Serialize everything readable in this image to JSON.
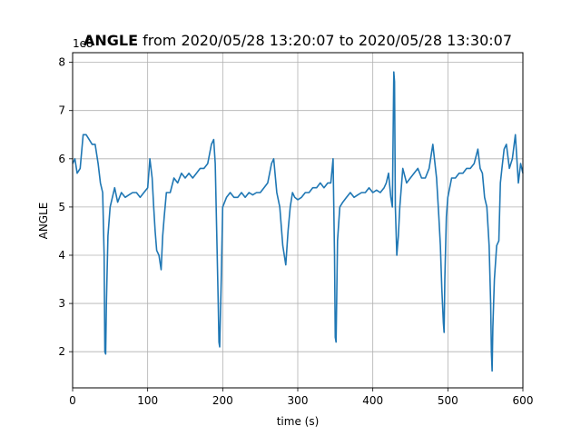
{
  "chart_data": {
    "type": "line",
    "title_bold": "ANGLE",
    "title_rest": " from 2020/05/28 13:20:07 to 2020/05/28 13:30:07",
    "xlabel": "time (s)",
    "ylabel": "ANGLE",
    "y_offset_label": "1e8",
    "xlim": [
      0,
      600
    ],
    "ylim": [
      1.25,
      8.2
    ],
    "xticks": [
      0,
      100,
      200,
      300,
      400,
      500,
      600
    ],
    "yticks": [
      2,
      3,
      4,
      5,
      6,
      7,
      8
    ],
    "grid": true,
    "line_color": "#1f77b4",
    "series": [
      {
        "x": [
          0,
          3,
          6,
          10,
          14,
          18,
          22,
          26,
          30,
          34,
          37,
          40,
          42,
          43,
          44,
          45,
          47,
          50,
          53,
          56,
          60,
          65,
          70,
          75,
          80,
          85,
          90,
          95,
          100,
          103,
          106,
          108,
          110,
          112,
          115,
          118,
          120,
          122,
          125,
          130,
          135,
          140,
          145,
          150,
          155,
          160,
          165,
          170,
          175,
          180,
          185,
          188,
          190,
          192,
          194,
          195,
          196,
          198,
          200,
          205,
          210,
          215,
          220,
          225,
          230,
          235,
          240,
          245,
          250,
          255,
          260,
          265,
          268,
          272,
          276,
          280,
          284,
          287,
          290,
          293,
          296,
          300,
          305,
          310,
          315,
          320,
          325,
          330,
          335,
          340,
          344,
          347,
          349,
          350,
          351,
          353,
          356,
          360,
          365,
          370,
          375,
          380,
          385,
          390,
          395,
          400,
          405,
          410,
          415,
          418,
          421,
          424,
          426,
          427,
          428,
          429,
          430,
          431,
          432,
          434,
          436,
          440,
          445,
          450,
          455,
          460,
          465,
          470,
          475,
          480,
          485,
          488,
          490,
          492,
          494,
          495,
          496,
          498,
          500,
          505,
          510,
          515,
          520,
          525,
          530,
          535,
          540,
          543,
          546,
          549,
          552,
          555,
          557,
          558,
          559,
          560,
          562,
          565,
          568,
          570,
          572,
          575,
          578,
          582,
          586,
          590,
          594,
          597,
          600
        ],
        "y": [
          5.9,
          6.0,
          5.7,
          5.8,
          6.5,
          6.5,
          6.4,
          6.3,
          6.3,
          5.9,
          5.5,
          5.3,
          4.0,
          2.0,
          1.95,
          3.0,
          4.4,
          5.0,
          5.2,
          5.4,
          5.1,
          5.3,
          5.2,
          5.25,
          5.3,
          5.3,
          5.2,
          5.3,
          5.4,
          6.0,
          5.6,
          5.0,
          4.5,
          4.1,
          4.0,
          3.7,
          4.4,
          4.8,
          5.3,
          5.3,
          5.6,
          5.5,
          5.7,
          5.6,
          5.7,
          5.6,
          5.7,
          5.8,
          5.8,
          5.9,
          6.3,
          6.4,
          5.9,
          4.5,
          3.0,
          2.2,
          2.1,
          3.5,
          5.0,
          5.2,
          5.3,
          5.2,
          5.2,
          5.3,
          5.2,
          5.3,
          5.25,
          5.3,
          5.3,
          5.4,
          5.5,
          5.9,
          6.0,
          5.3,
          5.0,
          4.2,
          3.8,
          4.5,
          5.0,
          5.3,
          5.2,
          5.15,
          5.2,
          5.3,
          5.3,
          5.4,
          5.4,
          5.5,
          5.4,
          5.5,
          5.5,
          6.0,
          4.0,
          2.3,
          2.2,
          4.3,
          5.0,
          5.1,
          5.2,
          5.3,
          5.2,
          5.25,
          5.3,
          5.3,
          5.4,
          5.3,
          5.35,
          5.3,
          5.4,
          5.5,
          5.7,
          5.2,
          5.0,
          6.4,
          7.8,
          7.6,
          5.0,
          4.5,
          4.0,
          4.4,
          5.0,
          5.8,
          5.5,
          5.6,
          5.7,
          5.8,
          5.6,
          5.6,
          5.8,
          6.3,
          5.6,
          4.8,
          4.2,
          3.3,
          2.6,
          2.4,
          3.5,
          4.8,
          5.2,
          5.6,
          5.6,
          5.7,
          5.7,
          5.8,
          5.8,
          5.9,
          6.2,
          5.8,
          5.7,
          5.2,
          5.0,
          4.2,
          3.0,
          2.0,
          1.6,
          2.5,
          3.5,
          4.2,
          4.3,
          5.5,
          5.8,
          6.2,
          6.3,
          5.8,
          6.0,
          6.5,
          5.5,
          5.9,
          5.7
        ]
      }
    ]
  }
}
